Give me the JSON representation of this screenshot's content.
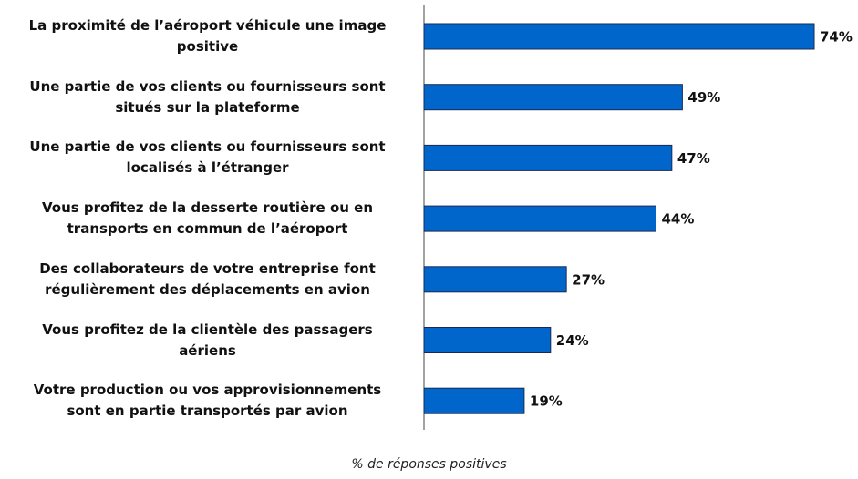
{
  "chart_data": {
    "type": "barh",
    "categories": [
      "La proximité de l’aéroport véhicule une image\npositive",
      "Une partie de vos clients ou fournisseurs sont\nsitués sur la plateforme",
      "Une partie de vos clients ou fournisseurs sont\nlocalisés à l’étranger",
      "Vous profitez de la desserte routière ou en\ntransports en commun de l’aéroport",
      "Des collaborateurs de votre entreprise font\nrégulièrement des déplacements en avion",
      "Vous profitez de la clientèle des passagers\naériens",
      "Votre production ou vos approvisionnements\nsont en partie transportés par avion"
    ],
    "values": [
      74,
      49,
      47,
      44,
      27,
      24,
      19
    ],
    "value_labels": [
      "74%",
      "49%",
      "47%",
      "44%",
      "27%",
      "24%",
      "19%"
    ],
    "color": "#0066cc",
    "xlabel": "% de réponses positives"
  }
}
